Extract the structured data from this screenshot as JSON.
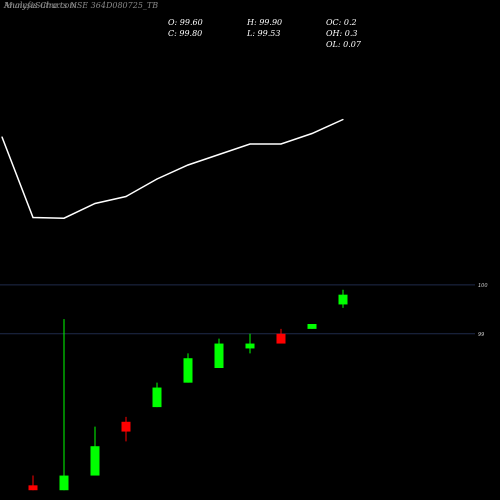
{
  "header": {
    "title_overlay_a": "MunafaSutra.com",
    "title_overlay_b": "Analysis Charts NSE 364D080725_TB",
    "o": "O: 99.60",
    "c": "C: 99.80",
    "h": "H: 99.90",
    "l": "L: 99.53",
    "oc": "OC: 0.2",
    "oh": "OH: 0.3",
    "ol": "OL: 0.07"
  },
  "colors": {
    "background": "#000000",
    "up": "#00ff00",
    "down": "#ff0000",
    "line": "#ffffff",
    "gridline": "#1f2a4a",
    "text": "#ffffff"
  },
  "chart_data": [
    {
      "type": "line",
      "x": [
        1,
        2,
        3,
        4,
        5,
        6,
        7,
        8,
        9,
        10,
        11,
        12
      ],
      "values": [
        97.8,
        95.5,
        95.48,
        95.9,
        96.1,
        96.6,
        97.0,
        97.3,
        97.6,
        97.6,
        97.9,
        98.3
      ],
      "ylim": [
        94.0,
        100.0
      ]
    },
    {
      "type": "candlestick",
      "x": [
        2,
        3,
        4,
        5,
        6,
        7,
        8,
        9,
        10,
        11,
        12
      ],
      "open": [
        95.9,
        95.8,
        96.1,
        97.2,
        97.5,
        98.0,
        98.3,
        98.7,
        99.0,
        99.1,
        99.6
      ],
      "high": [
        96.1,
        99.3,
        97.1,
        97.3,
        98.0,
        98.6,
        98.9,
        99.0,
        99.1,
        99.2,
        99.9
      ],
      "low": [
        95.8,
        95.8,
        96.1,
        96.8,
        97.5,
        98.0,
        98.3,
        98.6,
        98.8,
        99.1,
        99.53
      ],
      "close": [
        95.8,
        96.1,
        96.7,
        97.0,
        97.9,
        98.5,
        98.8,
        98.8,
        98.8,
        99.2,
        99.8
      ],
      "ylim": [
        95.6,
        100.1
      ],
      "gridlines": [
        100,
        99
      ],
      "tick_labels": [
        "100",
        "99"
      ]
    }
  ]
}
